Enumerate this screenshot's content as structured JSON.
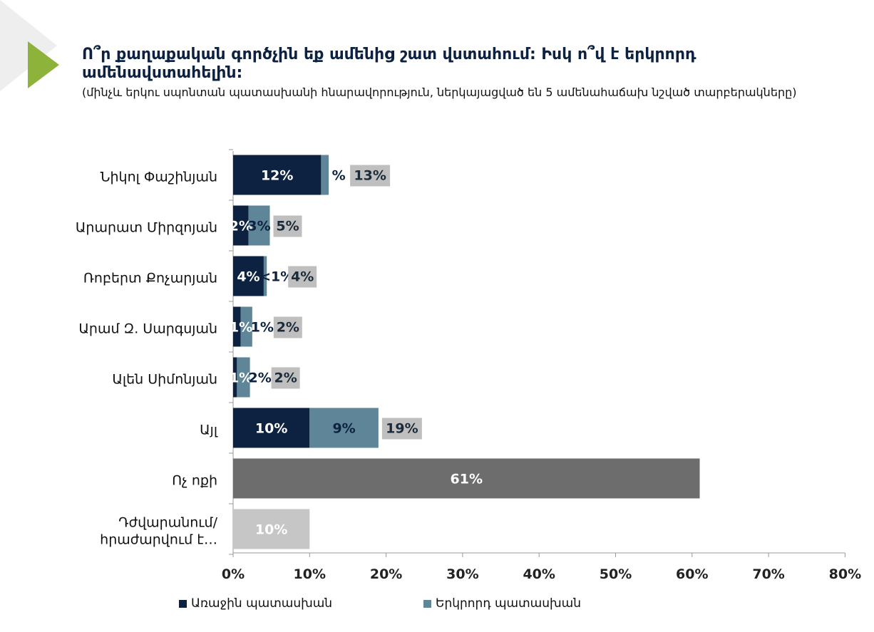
{
  "header": {
    "title": "Ո՞ր քաղաքական գործչին եք ամենից շատ վստահում: Իսկ ո՞վ է երկրորդ ամենավստահելին:",
    "subtitle": "(մինչև երկու սպոնտան պատասխանի հնարավորություն, ներկայացված են 5 ամենահաճախ նշված տարբերակները)"
  },
  "icons": {
    "arrow": "triangle-arrow-icon",
    "corner": "corner-decoration"
  },
  "colors": {
    "first": "#0d2240",
    "second": "#5e8598",
    "total": "#bfbfbf",
    "none": "#6d6d6d",
    "difficult": "#c6c6c6",
    "accent": "#8db33a",
    "corner": "#eeeeee",
    "axis": "#999999"
  },
  "legend": {
    "first_label": "Առաջին պատասխան",
    "second_label": "Երկրորդ պատասխան"
  },
  "chart_data": {
    "type": "bar",
    "orientation": "horizontal",
    "stacked": true,
    "categories": [
      "Նիկոլ Փաշինյան",
      "Արարատ Միրզոյան",
      "Ռոբերտ Քոչարյան",
      "Արամ Զ.  Սարգսյան",
      "Ալեն Սիմոնյան",
      "Այլ",
      "Ոչ ոքի",
      "Դժվարանում/ հրաժարվում է…"
    ],
    "series": [
      {
        "name": "Առաջին պատասխան",
        "values": [
          11.5,
          2,
          4,
          1,
          0.5,
          10,
          null,
          null
        ]
      },
      {
        "name": "Երկրորդ պատասխան",
        "values": [
          1,
          2.8,
          0.4,
          1.5,
          1.7,
          9,
          null,
          null
        ]
      }
    ],
    "data_labels": {
      "first": [
        "12%",
        "2%",
        "4%",
        "1%",
        "1%",
        "10%",
        "",
        ""
      ],
      "second": [
        "%",
        "3%",
        "<1%",
        "1%",
        "2%",
        "9%",
        "",
        ""
      ],
      "total": [
        "13%",
        "5%",
        "4%",
        "2%",
        "2%",
        "19%",
        "",
        ""
      ]
    },
    "single_bars": [
      {
        "category_index": 6,
        "value": 61,
        "label": "61%",
        "color": "#6d6d6d"
      },
      {
        "category_index": 7,
        "value": 10,
        "label": "10%",
        "color": "#c6c6c6"
      }
    ],
    "xlim": [
      0,
      80
    ],
    "xticks": [
      0,
      10,
      20,
      30,
      40,
      50,
      60,
      70,
      80
    ],
    "xtick_labels": [
      "0%",
      "10%",
      "20%",
      "30%",
      "40%",
      "50%",
      "60%",
      "70%",
      "80%"
    ],
    "grid": false,
    "legend_position": "bottom"
  }
}
